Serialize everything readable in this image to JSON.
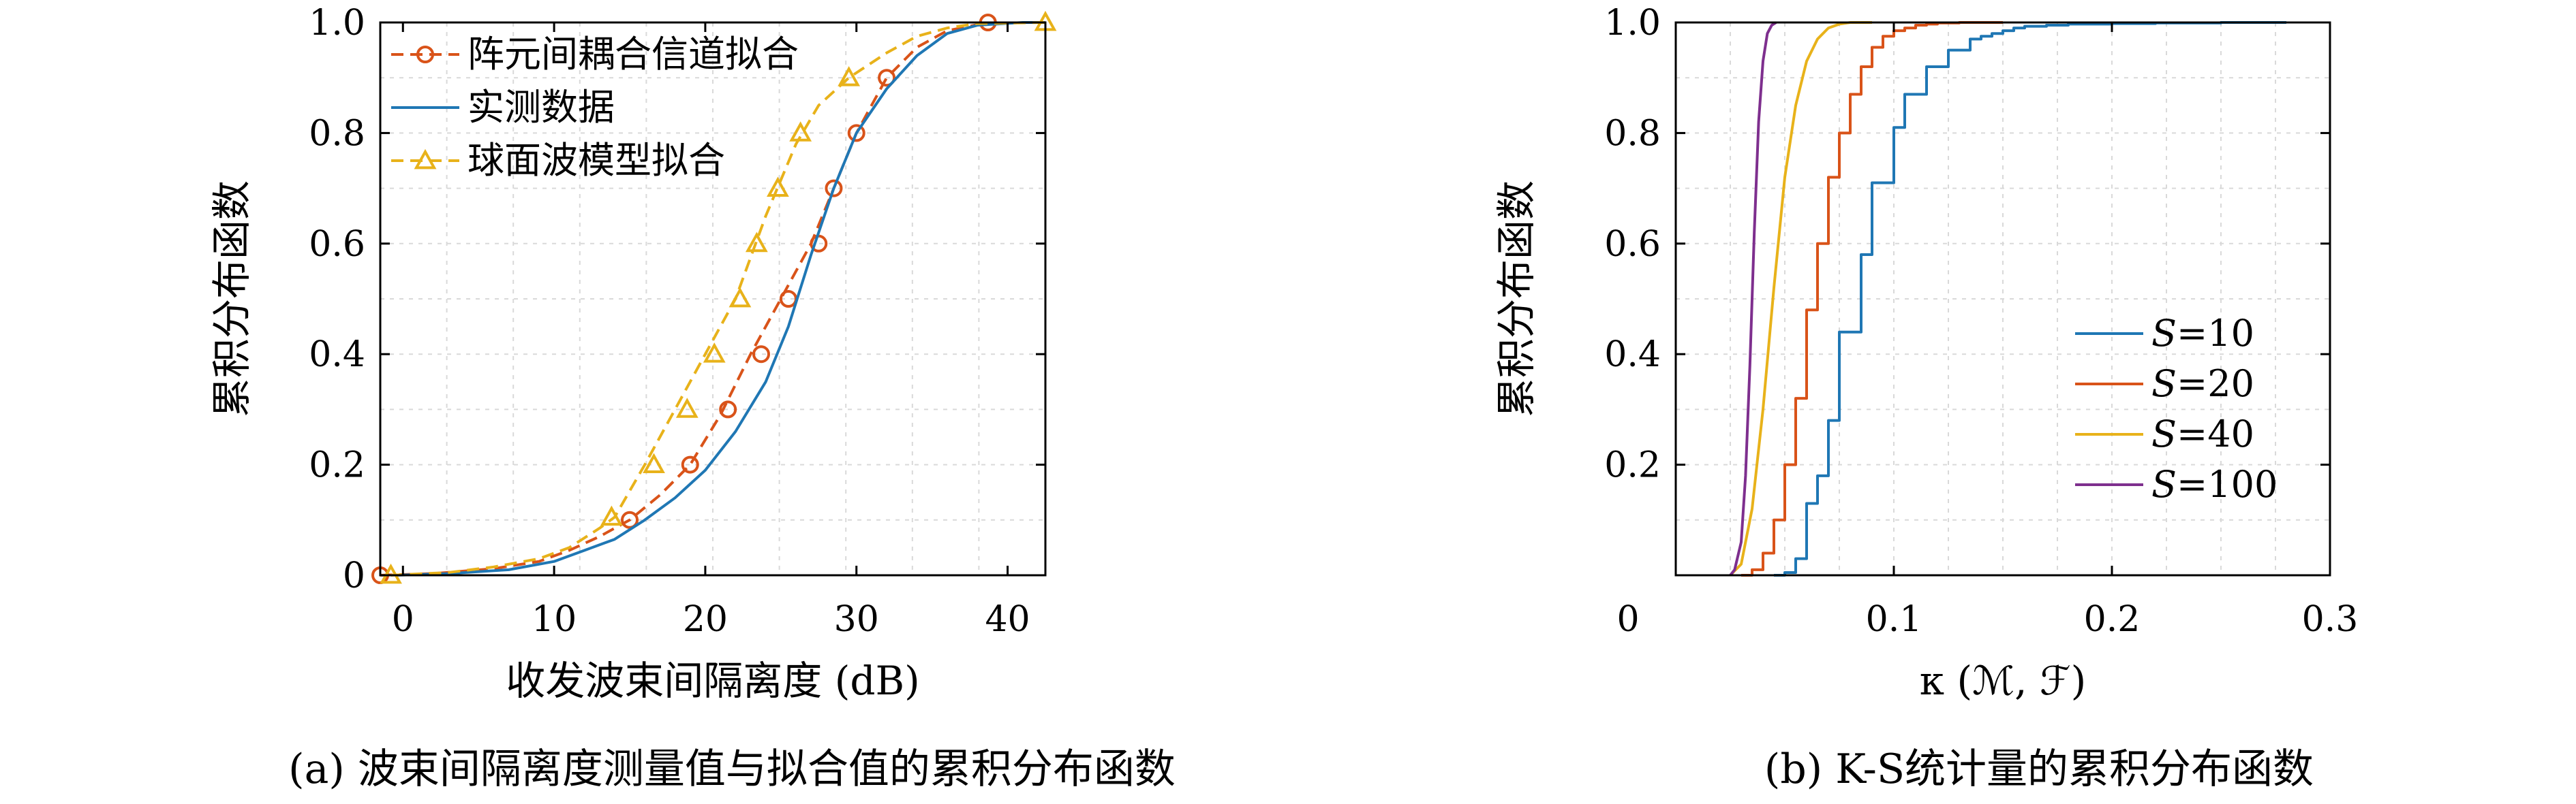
{
  "colors": {
    "blue": "#1f77b4",
    "orange": "#d95319",
    "yellow": "#e8b21a",
    "purple": "#7e2f8e",
    "grid": "#d9d9d9"
  },
  "captions": {
    "a": "(a) 波束间隔离度测量值与拟合值的累积分布函数",
    "b": "(b) K-S统计量的累积分布函数"
  },
  "chart_data": [
    {
      "type": "line",
      "xlabel": "收发波束间隔离度 (dB)",
      "ylabel": "累积分布函数",
      "xlim": [
        -1.5,
        42.5
      ],
      "ylim": [
        0,
        1.0
      ],
      "xticks": [
        "0",
        "10",
        "20",
        "30",
        "40"
      ],
      "xtick_values": [
        0,
        10,
        20,
        30,
        40
      ],
      "yticks": [
        "0",
        "0.2",
        "0.4",
        "0.6",
        "0.8",
        "1.0"
      ],
      "ytick_values": [
        0,
        0.2,
        0.4,
        0.6,
        0.8,
        1.0
      ],
      "grid": true,
      "legend_position": "top-left",
      "series": [
        {
          "name": "阵元间耦合信道拟合",
          "style": "dashed",
          "marker": "circle",
          "color": "#d95319",
          "x": [
            -1.5,
            2,
            6,
            9,
            11,
            13,
            15,
            17,
            19,
            21,
            23,
            25,
            27,
            28.5,
            30,
            32,
            34,
            36,
            38.7
          ],
          "y": [
            0,
            0.003,
            0.012,
            0.025,
            0.045,
            0.07,
            0.1,
            0.145,
            0.2,
            0.29,
            0.4,
            0.5,
            0.6,
            0.7,
            0.8,
            0.9,
            0.955,
            0.985,
            1.0
          ],
          "marker_x": [
            -1.5,
            15,
            19,
            21.5,
            23.7,
            25.5,
            27.5,
            28.5,
            30,
            32,
            38.7
          ],
          "marker_y": [
            0,
            0.1,
            0.2,
            0.3,
            0.4,
            0.5,
            0.6,
            0.7,
            0.8,
            0.9,
            1.0
          ]
        },
        {
          "name": "实测数据",
          "style": "solid",
          "marker": "none",
          "color": "#1f77b4",
          "x": [
            -0.5,
            3,
            7,
            10,
            12,
            14,
            16,
            18,
            20,
            22,
            24,
            25.5,
            27,
            28.5,
            30,
            32,
            34,
            36,
            38,
            41,
            42.5
          ],
          "y": [
            0,
            0.003,
            0.01,
            0.025,
            0.045,
            0.065,
            0.1,
            0.14,
            0.19,
            0.26,
            0.35,
            0.45,
            0.58,
            0.7,
            0.8,
            0.88,
            0.94,
            0.98,
            0.995,
            1.0,
            1.0
          ]
        },
        {
          "name": "球面波模型拟合",
          "style": "dashed",
          "marker": "triangle",
          "color": "#e8b21a",
          "x": [
            -0.8,
            3,
            6,
            9,
            11,
            13,
            14,
            16,
            18,
            20,
            22,
            24,
            26,
            27.5,
            29.5,
            32,
            34,
            36,
            38,
            42.5
          ],
          "y": [
            0,
            0.005,
            0.015,
            0.03,
            0.05,
            0.085,
            0.105,
            0.2,
            0.3,
            0.4,
            0.5,
            0.65,
            0.78,
            0.85,
            0.9,
            0.945,
            0.975,
            0.99,
            0.998,
            1.0
          ],
          "marker_x": [
            -0.8,
            13.8,
            16.6,
            18.8,
            20.6,
            22.3,
            23.4,
            24.8,
            26.3,
            29.5,
            42.5
          ],
          "marker_y": [
            0,
            0.105,
            0.2,
            0.3,
            0.4,
            0.5,
            0.6,
            0.7,
            0.8,
            0.9,
            1.0
          ]
        }
      ]
    },
    {
      "type": "line",
      "xlabel": "κ (ℳ, ℱ)",
      "ylabel": "累积分布函数",
      "xlim": [
        0,
        0.3
      ],
      "ylim": [
        0,
        1.0
      ],
      "xticks": [
        "0",
        "0.1",
        "0.2",
        "0.3"
      ],
      "xtick_values": [
        0,
        0.1,
        0.2,
        0.3
      ],
      "yticks": [
        "0.2",
        "0.4",
        "0.6",
        "0.8",
        "1.0"
      ],
      "ytick_values": [
        0.2,
        0.4,
        0.6,
        0.8,
        1.0
      ],
      "grid": true,
      "legend_position": "center-right",
      "series": [
        {
          "name": "S=10",
          "legend_var": "S",
          "legend_val": "=10",
          "style": "step",
          "color": "#1f77b4",
          "x": [
            0.045,
            0.05,
            0.055,
            0.06,
            0.065,
            0.07,
            0.075,
            0.08,
            0.085,
            0.09,
            0.095,
            0.1,
            0.105,
            0.11,
            0.115,
            0.12,
            0.125,
            0.13,
            0.135,
            0.14,
            0.145,
            0.15,
            0.155,
            0.16,
            0.17,
            0.18,
            0.2,
            0.22,
            0.25,
            0.28
          ],
          "y": [
            0,
            0.005,
            0.03,
            0.13,
            0.18,
            0.28,
            0.44,
            0.44,
            0.58,
            0.71,
            0.71,
            0.81,
            0.87,
            0.87,
            0.92,
            0.92,
            0.95,
            0.95,
            0.97,
            0.975,
            0.98,
            0.985,
            0.99,
            0.993,
            0.995,
            0.997,
            0.998,
            0.999,
            1.0,
            1.0
          ]
        },
        {
          "name": "S=20",
          "legend_var": "S",
          "legend_val": "=20",
          "style": "step",
          "color": "#d95319",
          "x": [
            0.03,
            0.035,
            0.04,
            0.045,
            0.05,
            0.055,
            0.06,
            0.065,
            0.07,
            0.075,
            0.08,
            0.085,
            0.09,
            0.095,
            0.1,
            0.105,
            0.11,
            0.115,
            0.12,
            0.13,
            0.15
          ],
          "y": [
            0,
            0.01,
            0.04,
            0.1,
            0.2,
            0.32,
            0.48,
            0.6,
            0.72,
            0.8,
            0.87,
            0.92,
            0.955,
            0.975,
            0.985,
            0.99,
            0.995,
            0.997,
            0.999,
            1.0,
            1.0
          ]
        },
        {
          "name": "S=40",
          "legend_var": "S",
          "legend_val": "=40",
          "style": "solid",
          "color": "#e8b21a",
          "x": [
            0.025,
            0.03,
            0.035,
            0.04,
            0.045,
            0.05,
            0.055,
            0.06,
            0.065,
            0.07,
            0.075,
            0.08,
            0.09
          ],
          "y": [
            0,
            0.02,
            0.12,
            0.3,
            0.52,
            0.72,
            0.85,
            0.93,
            0.97,
            0.99,
            0.997,
            1.0,
            1.0
          ]
        },
        {
          "name": "S=100",
          "legend_var": "S",
          "legend_val": "=100",
          "style": "solid",
          "color": "#7e2f8e",
          "x": [
            0.025,
            0.027,
            0.03,
            0.032,
            0.034,
            0.036,
            0.038,
            0.04,
            0.042,
            0.044,
            0.046
          ],
          "y": [
            0,
            0.01,
            0.06,
            0.18,
            0.38,
            0.62,
            0.82,
            0.93,
            0.98,
            0.995,
            1.0
          ]
        }
      ]
    }
  ]
}
